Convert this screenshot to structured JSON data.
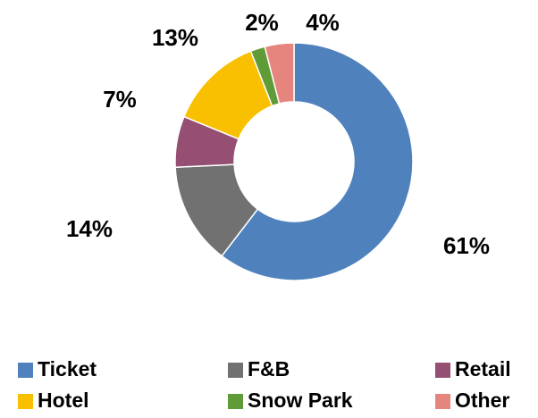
{
  "chart_data": {
    "type": "donut",
    "categories": [
      "Ticket",
      "F&B",
      "Retail",
      "Hotel",
      "Snow Park",
      "Other"
    ],
    "values": [
      61,
      14,
      7,
      13,
      2,
      4
    ],
    "value_labels": [
      "61%",
      "14%",
      "7%",
      "13%",
      "2%",
      "4%"
    ],
    "colors": [
      "#4f81bd",
      "#717171",
      "#954f72",
      "#f8c000",
      "#5f9b36",
      "#e6857d"
    ],
    "legend": "bottom"
  }
}
